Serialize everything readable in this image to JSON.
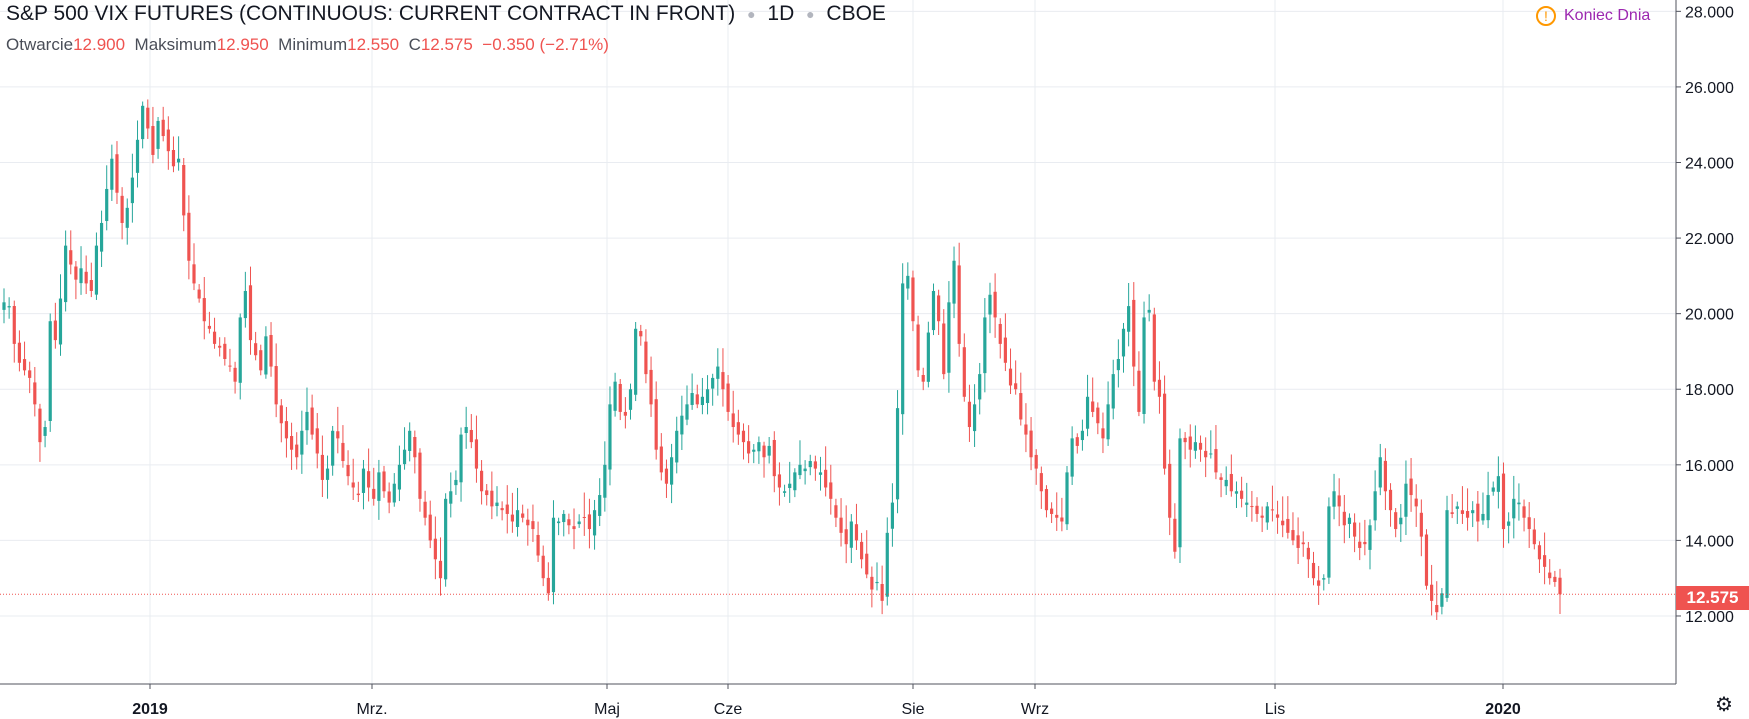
{
  "legend": {
    "title": "S&P 500 VIX FUTURES (CONTINUOUS: CURRENT CONTRACT IN FRONT)",
    "interval": "1D",
    "exchange": "CBOE",
    "open_label": "Otwarcie",
    "open_value": "12.900",
    "high_label": "Maksimum",
    "high_value": "12.950",
    "low_label": "Minimum",
    "low_value": "12.550",
    "close_label": "C",
    "close_value": "12.575",
    "change": "−0.350 (−2.71%)"
  },
  "status": {
    "label": "Koniec Dnia",
    "icon": "warning-icon"
  },
  "price_tag": "12.575",
  "colors": {
    "up": "#26a69a",
    "down": "#ef5350",
    "grid": "#e9ecf1",
    "axis": "#50535e"
  },
  "chart_data": {
    "type": "candlestick",
    "y_axis": {
      "ticks": [
        "12.000",
        "14.000",
        "16.000",
        "18.000",
        "20.000",
        "22.000",
        "24.000",
        "26.000",
        "28.000"
      ],
      "range": [
        10.2,
        28.3
      ],
      "position": "right"
    },
    "x_axis": {
      "labels": [
        "2019",
        "Mrz.",
        "Maj",
        "Cze",
        "Sie",
        "Wrz",
        "Lis",
        "2020"
      ],
      "bold_labels": [
        "2019",
        "2020"
      ]
    },
    "last_price": 12.575,
    "close_series": [
      20.3,
      20.2,
      19.2,
      18.7,
      18.5,
      18.3,
      17.6,
      16.6,
      17.0,
      19.8,
      19.3,
      20.4,
      21.8,
      21.3,
      20.9,
      21.2,
      20.8,
      20.6,
      21.8,
      22.4,
      23.3,
      24.1,
      23.2,
      22.4,
      22.8,
      23.6,
      24.6,
      25.5,
      24.9,
      24.2,
      25.1,
      24.7,
      24.3,
      23.9,
      24.1,
      22.6,
      21.4,
      20.8,
      20.4,
      19.8,
      19.6,
      19.2,
      19.1,
      18.8,
      18.6,
      18.2,
      19.9,
      20.6,
      19.3,
      18.9,
      18.5,
      19.4,
      18.6,
      17.6,
      17.1,
      16.7,
      16.4,
      16.2,
      16.9,
      17.4,
      16.8,
      16.3,
      15.6,
      15.9,
      16.9,
      16.7,
      16.1,
      15.7,
      15.4,
      15.2,
      15.9,
      15.4,
      15.1,
      15.8,
      15.3,
      15.0,
      15.5,
      16.0,
      16.4,
      16.9,
      16.2,
      15.1,
      14.6,
      14.0,
      13.5,
      13.0,
      15.1,
      15.3,
      15.6,
      16.8,
      17.0,
      16.6,
      15.9,
      15.3,
      15.2,
      14.9,
      15.0,
      14.8,
      14.7,
      14.5,
      14.8,
      14.6,
      14.4,
      14.3,
      13.6,
      13.0,
      12.6,
      14.6,
      14.5,
      14.7,
      14.4,
      14.3,
      14.5,
      14.6,
      14.3,
      14.8,
      15.2,
      16.0,
      17.6,
      18.2,
      17.4,
      17.3,
      18.0,
      19.6,
      19.4,
      18.4,
      17.6,
      16.4,
      15.8,
      15.5,
      16.2,
      16.9,
      17.3,
      17.6,
      17.9,
      17.6,
      17.8,
      18.0,
      18.3,
      18.6,
      18.0,
      17.4,
      17.0,
      16.8,
      16.6,
      16.3,
      16.4,
      16.6,
      16.2,
      16.5,
      15.7,
      15.4,
      15.3,
      15.5,
      15.8,
      16.0,
      15.9,
      16.1,
      15.9,
      15.8,
      15.4,
      15.1,
      14.6,
      14.2,
      13.9,
      14.5,
      14.0,
      13.5,
      13.1,
      12.7,
      12.9,
      12.4,
      14.2,
      15.0,
      17.5,
      20.8,
      21.0,
      19.8,
      18.5,
      18.2,
      19.5,
      20.6,
      19.8,
      18.4,
      20.3,
      21.4,
      19.2,
      17.8,
      17.0,
      17.6,
      18.4,
      19.9,
      20.5,
      19.9,
      19.2,
      18.7,
      18.1,
      18.0,
      17.2,
      16.8,
      16.2,
      15.9,
      15.3,
      14.8,
      14.7,
      14.6,
      14.5,
      15.8,
      16.7,
      16.5,
      16.9,
      17.8,
      17.4,
      17.1,
      16.7,
      17.6,
      18.4,
      18.8,
      19.6,
      20.2,
      18.6,
      17.4,
      19.9,
      20.1,
      18.2,
      17.8,
      15.9,
      14.6,
      13.7,
      16.7,
      16.6,
      16.4,
      16.6,
      16.4,
      16.2,
      16.3,
      15.8,
      15.6,
      15.6,
      15.3,
      15.3,
      15.1,
      15.0,
      14.9,
      14.7,
      14.6,
      14.9,
      14.8,
      14.6,
      14.4,
      14.2,
      14.0,
      13.8,
      13.9,
      13.5,
      13.0,
      12.8,
      13.0,
      14.9,
      15.3,
      14.9,
      14.4,
      14.6,
      14.1,
      13.8,
      13.9,
      14.4,
      15.3,
      16.2,
      15.3,
      14.8,
      14.3,
      14.6,
      15.5,
      15.2,
      14.9,
      14.1,
      12.8,
      12.4,
      12.1,
      12.6,
      14.8,
      14.7,
      14.9,
      14.7,
      14.6,
      14.8,
      14.5,
      14.7,
      15.2,
      15.4,
      15.7,
      14.3,
      14.5,
      15.1,
      15.0,
      14.6,
      14.3,
      13.9,
      13.5,
      13.3,
      13.0,
      12.9,
      12.575
    ]
  }
}
